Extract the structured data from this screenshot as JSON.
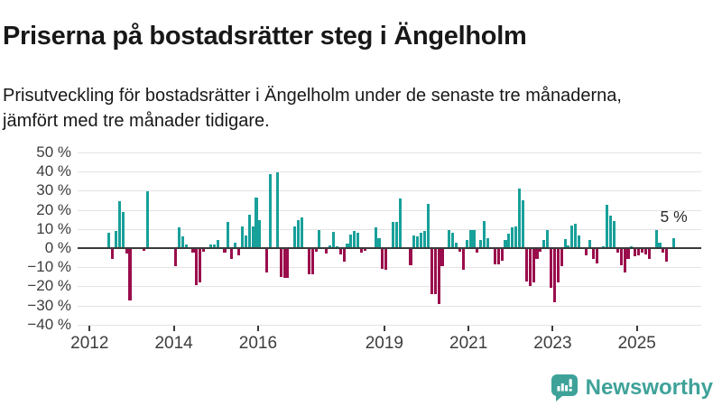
{
  "header": {
    "title": "Priserna på bostadsrätter steg i Ängelholm",
    "subtitle": "Prisutveckling för bostadsrätter i Ängelholm under de senaste tre månaderna, jämfört med tre månader tidigare."
  },
  "chart_data": {
    "type": "bar",
    "title": "Priserna på bostadsrätter steg i Ängelholm",
    "xlabel": "",
    "ylabel": "",
    "unit": "%",
    "ylim": [
      -40,
      50
    ],
    "grid": true,
    "legend": "none",
    "yticks": [
      50,
      40,
      30,
      20,
      10,
      0,
      -10,
      -20,
      -30,
      -40
    ],
    "ytick_labels": [
      "50 %",
      "40 %",
      "30 %",
      "20 %",
      "10 %",
      "0 %",
      "−10 %",
      "−20 %",
      "−30 %",
      "−40 %"
    ],
    "xticks": [
      2012,
      2014,
      2016,
      2019,
      2021,
      2023,
      2025
    ],
    "annotation": {
      "label": "5 %",
      "month": "2025-11",
      "value": 5
    },
    "colors": {
      "positive": "#18a09a",
      "negative": "#9a0d4c"
    },
    "series": [
      {
        "name": "Prisutveckling bostadsrätter Ängelholm, 3 mån vs 3 mån tidigare",
        "points": [
          [
            "2012-06",
            8
          ],
          [
            "2012-07",
            -5.5
          ],
          [
            "2012-08",
            9
          ],
          [
            "2012-09",
            24.5
          ],
          [
            "2012-10",
            19
          ],
          [
            "2012-11",
            -3
          ],
          [
            "2012-12",
            -27.5
          ],
          [
            "2013-01",
            0
          ],
          [
            "2013-02",
            0
          ],
          [
            "2013-03",
            0
          ],
          [
            "2013-04",
            -1.5
          ],
          [
            "2013-05",
            29.5
          ],
          [
            "2013-06",
            0
          ],
          [
            "2013-07",
            0
          ],
          [
            "2013-08",
            0
          ],
          [
            "2013-09",
            0
          ],
          [
            "2013-10",
            0
          ],
          [
            "2013-11",
            0
          ],
          [
            "2013-12",
            0
          ],
          [
            "2014-01",
            -9.5
          ],
          [
            "2014-02",
            11
          ],
          [
            "2014-03",
            6
          ],
          [
            "2014-04",
            2
          ],
          [
            "2014-05",
            0
          ],
          [
            "2014-06",
            -2.5
          ],
          [
            "2014-07",
            -19.5
          ],
          [
            "2014-08",
            -18
          ],
          [
            "2014-09",
            -2
          ],
          [
            "2014-10",
            0
          ],
          [
            "2014-11",
            2
          ],
          [
            "2014-12",
            2
          ],
          [
            "2015-01",
            4
          ],
          [
            "2015-02",
            0
          ],
          [
            "2015-03",
            -2.5
          ],
          [
            "2015-04",
            13.5
          ],
          [
            "2015-05",
            -5.5
          ],
          [
            "2015-06",
            3
          ],
          [
            "2015-07",
            -4
          ],
          [
            "2015-08",
            11.5
          ],
          [
            "2015-09",
            6.5
          ],
          [
            "2015-10",
            17.5
          ],
          [
            "2015-11",
            11.5
          ],
          [
            "2015-12",
            26.5
          ],
          [
            "2016-01",
            14.5
          ],
          [
            "2016-02",
            0
          ],
          [
            "2016-03",
            -13
          ],
          [
            "2016-04",
            38.5
          ],
          [
            "2016-05",
            0
          ],
          [
            "2016-06",
            39.5
          ],
          [
            "2016-07",
            -15
          ],
          [
            "2016-08",
            -15.5
          ],
          [
            "2016-09",
            -15.5
          ],
          [
            "2016-10",
            0
          ],
          [
            "2016-11",
            11.5
          ],
          [
            "2016-12",
            14.5
          ],
          [
            "2017-01",
            16
          ],
          [
            "2017-02",
            0
          ],
          [
            "2017-03",
            -13.5
          ],
          [
            "2017-04",
            -13.5
          ],
          [
            "2017-05",
            -2
          ],
          [
            "2017-06",
            9.5
          ],
          [
            "2017-07",
            0
          ],
          [
            "2017-08",
            -3
          ],
          [
            "2017-09",
            1.5
          ],
          [
            "2017-10",
            8.5
          ],
          [
            "2017-11",
            1
          ],
          [
            "2017-12",
            -3.5
          ],
          [
            "2018-01",
            -7
          ],
          [
            "2018-02",
            2.5
          ],
          [
            "2018-03",
            7
          ],
          [
            "2018-04",
            9
          ],
          [
            "2018-05",
            8
          ],
          [
            "2018-06",
            -2.5
          ],
          [
            "2018-07",
            -1.5
          ],
          [
            "2018-08",
            0
          ],
          [
            "2018-09",
            0
          ],
          [
            "2018-10",
            11
          ],
          [
            "2018-11",
            5
          ],
          [
            "2018-12",
            -11
          ],
          [
            "2019-01",
            -11.5
          ],
          [
            "2019-02",
            0
          ],
          [
            "2019-03",
            13.5
          ],
          [
            "2019-04",
            13.5
          ],
          [
            "2019-05",
            26
          ],
          [
            "2019-06",
            0
          ],
          [
            "2019-07",
            0
          ],
          [
            "2019-08",
            -9
          ],
          [
            "2019-09",
            6.5
          ],
          [
            "2019-10",
            6
          ],
          [
            "2019-11",
            8
          ],
          [
            "2019-12",
            9
          ],
          [
            "2020-01",
            23
          ],
          [
            "2020-02",
            -24
          ],
          [
            "2020-03",
            -24
          ],
          [
            "2020-04",
            -29.5
          ],
          [
            "2020-05",
            -9.5
          ],
          [
            "2020-06",
            0
          ],
          [
            "2020-07",
            9.5
          ],
          [
            "2020-08",
            8
          ],
          [
            "2020-09",
            3
          ],
          [
            "2020-10",
            -2
          ],
          [
            "2020-11",
            -11.5
          ],
          [
            "2020-12",
            4
          ],
          [
            "2021-01",
            9.5
          ],
          [
            "2021-02",
            9.5
          ],
          [
            "2021-03",
            -2.5
          ],
          [
            "2021-04",
            4
          ],
          [
            "2021-05",
            14
          ],
          [
            "2021-06",
            5
          ],
          [
            "2021-07",
            0
          ],
          [
            "2021-08",
            -8.5
          ],
          [
            "2021-09",
            -8.5
          ],
          [
            "2021-10",
            -6.5
          ],
          [
            "2021-11",
            4
          ],
          [
            "2021-12",
            7.5
          ],
          [
            "2022-01",
            11
          ],
          [
            "2022-02",
            11.5
          ],
          [
            "2022-03",
            31
          ],
          [
            "2022-04",
            25
          ],
          [
            "2022-05",
            -17.5
          ],
          [
            "2022-06",
            -20
          ],
          [
            "2022-07",
            -18
          ],
          [
            "2022-08",
            -5.5
          ],
          [
            "2022-09",
            -2
          ],
          [
            "2022-10",
            4
          ],
          [
            "2022-11",
            9.5
          ],
          [
            "2022-12",
            -21
          ],
          [
            "2023-01",
            -28.5
          ],
          [
            "2023-02",
            -18
          ],
          [
            "2023-03",
            -9.5
          ],
          [
            "2023-04",
            4.5
          ],
          [
            "2023-05",
            1.5
          ],
          [
            "2023-06",
            12
          ],
          [
            "2023-07",
            12.5
          ],
          [
            "2023-08",
            6.5
          ],
          [
            "2023-09",
            0
          ],
          [
            "2023-10",
            -4
          ],
          [
            "2023-11",
            4
          ],
          [
            "2023-12",
            -5.5
          ],
          [
            "2024-01",
            -8
          ],
          [
            "2024-02",
            0
          ],
          [
            "2024-03",
            1
          ],
          [
            "2024-04",
            22.5
          ],
          [
            "2024-05",
            17
          ],
          [
            "2024-06",
            14
          ],
          [
            "2024-07",
            -2.5
          ],
          [
            "2024-08",
            -9
          ],
          [
            "2024-09",
            -13
          ],
          [
            "2024-10",
            -5.5
          ],
          [
            "2024-11",
            1
          ],
          [
            "2024-12",
            -4.5
          ],
          [
            "2025-01",
            -4
          ],
          [
            "2025-02",
            -2.5
          ],
          [
            "2025-03",
            -3.5
          ],
          [
            "2025-04",
            -5.5
          ],
          [
            "2025-05",
            0
          ],
          [
            "2025-06",
            9.5
          ],
          [
            "2025-07",
            3
          ],
          [
            "2025-08",
            -2.5
          ],
          [
            "2025-09",
            -7
          ],
          [
            "2025-10",
            0
          ],
          [
            "2025-11",
            5
          ]
        ]
      }
    ]
  },
  "footer": {
    "brand": "Newsworthy",
    "logo_icon": "newsworthy-speech-bubble-bar-chart-icon"
  }
}
